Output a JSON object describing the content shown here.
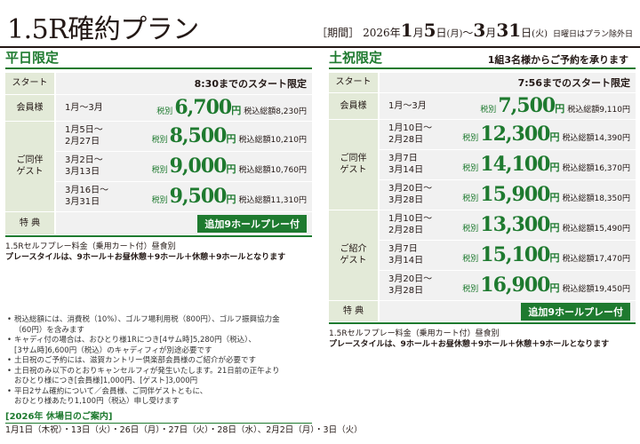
{
  "title": "1.5R確約プラン",
  "period": {
    "label": "［期間］",
    "year": "2026年",
    "start_month": "1",
    "m1": "月",
    "start_day": "5",
    "d1": "日",
    "start_wd": "(月)",
    "sep": "〜",
    "end_month": "3",
    "m2": "月",
    "end_day": "31",
    "d2": "日",
    "end_wd": "(火)",
    "note": "日曜日はプラン除外日"
  },
  "weekday": {
    "heading": "平日限定",
    "start_label": "スタート",
    "start_text": "8:30までのスタート限定",
    "member_label": "会員様",
    "member": {
      "dates": "1月〜3月",
      "pre": "税別",
      "price": "6,700",
      "yen": "円",
      "total_label": "税込総額",
      "total": "8,230",
      "total_yen": "円"
    },
    "guest_label": "ご同伴\nゲスト",
    "guest_rows": [
      {
        "dates": "1月5日〜\n2月27日",
        "pre": "税別",
        "price": "8,500",
        "yen": "円",
        "total_label": "税込総額",
        "total": "10,210",
        "total_yen": "円"
      },
      {
        "dates": "3月2日〜\n3月13日",
        "pre": "税別",
        "price": "9,000",
        "yen": "円",
        "total_label": "税込総額",
        "total": "10,760",
        "total_yen": "円"
      },
      {
        "dates": "3月16日〜\n3月31日",
        "pre": "税別",
        "price": "9,500",
        "yen": "円",
        "total_label": "税込総額",
        "total": "11,310",
        "total_yen": "円"
      }
    ],
    "extra_label": "特 典",
    "extra_badge": "追加9ホールプレー付",
    "self_play": "1.5Rセルフプレー料金（乗用カート付）昼食別",
    "play_style": "プレースタイルは、9ホール＋お昼休憩＋9ホール＋休憩＋9ホールとなります"
  },
  "holiday": {
    "heading": "土祝限定",
    "sub": "1組3名様からご予約を承ります",
    "start_label": "スタート",
    "start_text": "7:56までのスタート限定",
    "member_label": "会員様",
    "member": {
      "dates": "1月〜3月",
      "pre": "税別",
      "price": "7,500",
      "yen": "円",
      "total_label": "税込総額",
      "total": "9,110",
      "total_yen": "円"
    },
    "guest_label": "ご同伴\nゲスト",
    "guest_rows": [
      {
        "dates": "1月10日〜\n2月28日",
        "pre": "税別",
        "price": "12,300",
        "yen": "円",
        "total_label": "税込総額",
        "total": "14,390",
        "total_yen": "円"
      },
      {
        "dates": "3月7日\n3月14日",
        "pre": "税別",
        "price": "14,100",
        "yen": "円",
        "total_label": "税込総額",
        "total": "16,370",
        "total_yen": "円"
      },
      {
        "dates": "3月20日〜\n3月28日",
        "pre": "税別",
        "price": "15,900",
        "yen": "円",
        "total_label": "税込総額",
        "total": "18,350",
        "total_yen": "円"
      }
    ],
    "intro_label": "ご紹介\nゲスト",
    "intro_rows": [
      {
        "dates": "1月10日〜\n2月28日",
        "pre": "税別",
        "price": "13,300",
        "yen": "円",
        "total_label": "税込総額",
        "total": "15,490",
        "total_yen": "円"
      },
      {
        "dates": "3月7日\n3月14日",
        "pre": "税別",
        "price": "15,100",
        "yen": "円",
        "total_label": "税込総額",
        "total": "17,470",
        "total_yen": "円"
      },
      {
        "dates": "3月20日〜\n3月28日",
        "pre": "税別",
        "price": "16,900",
        "yen": "円",
        "total_label": "税込総額",
        "total": "19,450",
        "total_yen": "円"
      }
    ],
    "extra_label": "特 典",
    "extra_badge": "追加9ホールプレー付",
    "self_play": "1.5Rセルフプレー料金（乗用カート付）昼食別",
    "play_style": "プレースタイルは、9ホール＋お昼休憩＋9ホール＋休憩＋9ホールとなります"
  },
  "notes": [
    "税込総額には、消費税（10%）、ゴルフ場利用税（800円）、ゴルフ振興協力金",
    "（60円）を含みます",
    "キャディ付の場合は、おひとり様1Rにつき[4サム時]5,280円（税込）、",
    "[3サム時]6,600円（税込）のキャディフィが別途必要です",
    "土日祝のご予約には、滋賀カントリー倶楽部会員様のご紹介が必要です",
    "土日祝のみ以下のとおりキャンセルフィが発生いたします。21日前の正午より",
    "おひとり様につき[会員様]1,000円、[ゲスト]3,000円",
    "平日2サム確約について／会員様、ご同伴ゲストともに、",
    "おひとり様あたり1,100円（税込）申し受けます"
  ],
  "closed": {
    "heading": "[2026年 休場日のご案内]",
    "days": "1月1日（木祝）・13日（火）・26日（月）・27日（火）・28日（水）、2月2日（月）・3日（火）"
  },
  "colors": {
    "accent": "#1e7a2f",
    "header_bg": "#e3ead8",
    "cell_bg": "#f1f1f1"
  }
}
